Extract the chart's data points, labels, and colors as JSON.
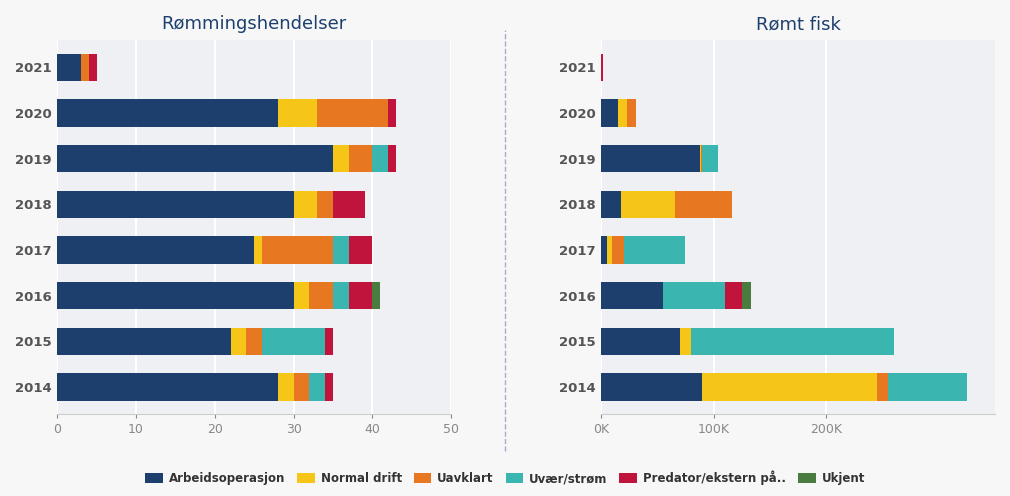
{
  "years": [
    "2021",
    "2020",
    "2019",
    "2018",
    "2017",
    "2016",
    "2015",
    "2014"
  ],
  "title_left": "Rømmingshendelser",
  "title_right": "Rømt fisk",
  "colors": {
    "Arbeidsoperasjon": "#1c3f6e",
    "Normal drift": "#f5c518",
    "Uavklart": "#e87722",
    "Uvær/strøm": "#3ab5b0",
    "Predator/ekstern på..": "#c0143c",
    "Ukjent": "#4a7c3f"
  },
  "legend_labels": [
    "Arbeidsoperasjon",
    "Normal drift",
    "Uavklart",
    "Uvær/strøm",
    "Predator/ekstern på..",
    "Ukjent"
  ],
  "events": {
    "Arbeidsoperasjon": [
      3,
      28,
      35,
      30,
      25,
      30,
      22,
      28
    ],
    "Normal drift": [
      0,
      5,
      2,
      3,
      1,
      2,
      2,
      2
    ],
    "Uavklart": [
      1,
      9,
      3,
      2,
      9,
      3,
      2,
      2
    ],
    "Uvær/strøm": [
      0,
      0,
      2,
      0,
      2,
      2,
      8,
      2
    ],
    "Predator/ekstern på..": [
      1,
      1,
      1,
      4,
      3,
      3,
      1,
      1
    ],
    "Ukjent": [
      0,
      0,
      0,
      0,
      0,
      1,
      0,
      0
    ]
  },
  "fish": {
    "Arbeidsoperasjon": [
      0,
      15000,
      88000,
      18000,
      5000,
      55000,
      70000,
      90000
    ],
    "Normal drift": [
      0,
      8000,
      1000,
      48000,
      5000,
      0,
      10000,
      155000
    ],
    "Uavklart": [
      0,
      8000,
      1000,
      50000,
      10000,
      0,
      0,
      10000
    ],
    "Uvær/strøm": [
      0,
      0,
      14000,
      0,
      55000,
      55000,
      180000,
      70000
    ],
    "Predator/ekstern på..": [
      2000,
      0,
      0,
      0,
      0,
      15000,
      0,
      0
    ],
    "Ukjent": [
      0,
      0,
      0,
      0,
      0,
      8000,
      0,
      0
    ]
  },
  "xlim_events": [
    0,
    50
  ],
  "xlim_fish": [
    0,
    350000
  ],
  "xticks_fish": [
    0,
    100000,
    200000
  ],
  "xtick_fish_labels": [
    "0K",
    "100K",
    "200K"
  ],
  "bg_color": "#eef0f3",
  "fig_bg": "#f7f7f7",
  "title_color": "#1c3f6e",
  "grid_color": "#ffffff",
  "spine_color": "#cccccc"
}
